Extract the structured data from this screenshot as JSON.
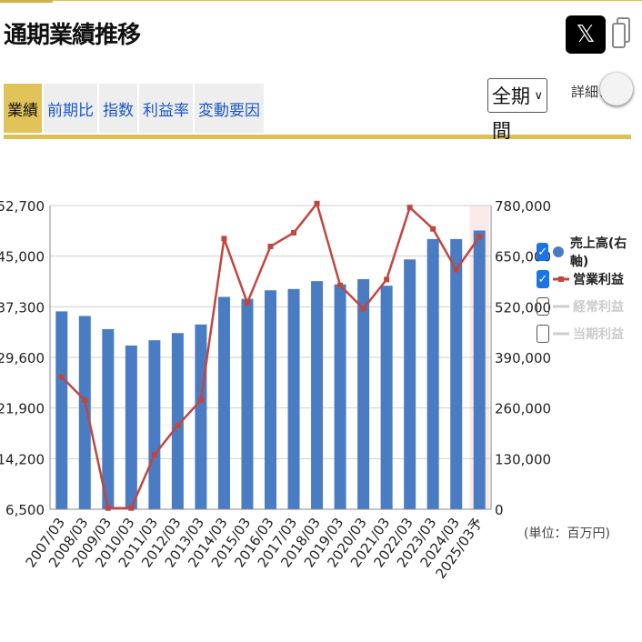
{
  "page": {
    "title": "通期業績推移",
    "share_icon": "x-logo-icon",
    "copy_icon": "copy-icon",
    "x_glyph": "𝕏"
  },
  "tabs": [
    {
      "label": "業績",
      "active": true
    },
    {
      "label": "前期比",
      "active": false
    },
    {
      "label": "指数",
      "active": false
    },
    {
      "label": "利益率",
      "active": false
    },
    {
      "label": "変動要因",
      "active": false
    }
  ],
  "controls": {
    "period_selected": "全期間",
    "detail_label": "詳細：",
    "detail_toggle_on": false
  },
  "legend": [
    {
      "label": "売上高(右軸)",
      "checked": true,
      "color": "#4a7cc4",
      "marker": "circle"
    },
    {
      "label": "営業利益",
      "checked": true,
      "color": "#c0473f",
      "marker": "line"
    },
    {
      "label": "経常利益",
      "checked": false,
      "color": "#cccccc",
      "marker": "line"
    },
    {
      "label": "当期利益",
      "checked": false,
      "color": "#cccccc",
      "marker": "line"
    }
  ],
  "unit_label": "(単位：百万円)",
  "chart_data": {
    "type": "bar",
    "categories": [
      "2007/03",
      "2008/03",
      "2009/03",
      "2010/03",
      "2011/03",
      "2012/03",
      "2013/03",
      "2014/03",
      "2015/03",
      "2016/03",
      "2017/03",
      "2018/03",
      "2019/03",
      "2020/03",
      "2021/03",
      "2022/03",
      "2023/03",
      "2024/03",
      "2025/03予"
    ],
    "series": [
      {
        "name": "売上高(右軸)",
        "type": "bar",
        "axis": "left",
        "color": "#4a7cc4",
        "values": [
          36600,
          35900,
          33900,
          31400,
          32200,
          33300,
          34600,
          38800,
          38500,
          39800,
          40000,
          41200,
          40700,
          41500,
          40500,
          44500,
          47600,
          47600,
          48900
        ]
      },
      {
        "name": "営業利益",
        "type": "line",
        "axis": "right",
        "color": "#c0473f",
        "values": [
          340000,
          280000,
          3000,
          3000,
          140000,
          215000,
          280000,
          695000,
          530000,
          675000,
          710000,
          785000,
          575000,
          515000,
          590000,
          775000,
          720000,
          615000,
          700000
        ]
      }
    ],
    "left_axis": {
      "ticks": [
        "6,500",
        "14,200",
        "21,900",
        "29,600",
        "37,300",
        "45,000",
        "52,700"
      ],
      "min": 6500,
      "max": 52700
    },
    "right_axis": {
      "ticks": [
        "0",
        "130,000",
        "260,000",
        "390,000",
        "520,000",
        "650,000",
        "780,000"
      ],
      "min": 0,
      "max": 780000
    },
    "forecast_highlight_index": 18,
    "grid": true
  }
}
